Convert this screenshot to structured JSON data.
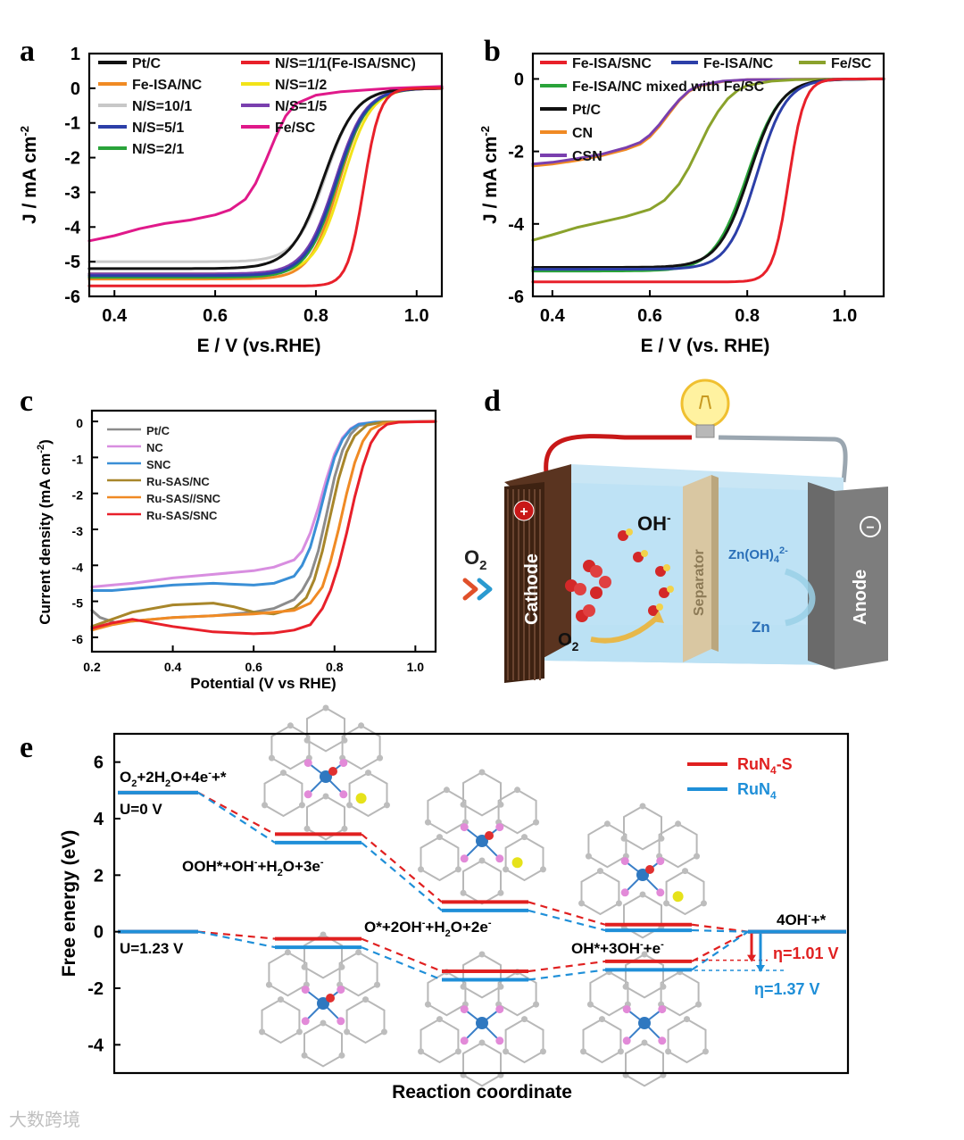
{
  "figure": {
    "watermark": "大数跨境",
    "panel_d": {
      "panel": "d",
      "cathode": "Cathode",
      "anode": "Anode",
      "separator": "Separator",
      "o2_in": "O",
      "o2_in_sub": "2",
      "o2_inside": "O",
      "o2_inside_sub": "2",
      "oh": "OH",
      "oh_sup": "-",
      "zincate": "Zn(OH)",
      "zincate_sub": "4",
      "zincate_sup": "2-",
      "zn": "Zn",
      "plus_symbol": "+",
      "minus_symbol": "−"
    }
  },
  "chart_data": [
    {
      "panel": "a",
      "type": "line",
      "xlabel": "E / V (vs.RHE)",
      "ylabel": "J / mA cm",
      "ylabel_sup": "-2",
      "xlim": [
        0.35,
        1.05
      ],
      "ylim": [
        -6,
        1
      ],
      "xticks": [
        0.4,
        0.6,
        0.8,
        1.0
      ],
      "xtick_labels": [
        "0.4",
        "0.6",
        "0.8",
        "1.0"
      ],
      "yticks": [
        1,
        0,
        -1,
        -2,
        -3,
        -4,
        -5,
        -6
      ],
      "ytick_labels": [
        "1",
        "0",
        "-1",
        "-2",
        "-3",
        "-4",
        "-5",
        "-6"
      ],
      "legend": [
        {
          "name": "Pt/C",
          "color": "#111111"
        },
        {
          "name": "N/S=1/1(Fe-ISA/SNC)",
          "color": "#e8202a"
        },
        {
          "name": "Fe-ISA/NC",
          "color": "#f08a24"
        },
        {
          "name": "N/S=1/2",
          "color": "#f2e318"
        },
        {
          "name": "N/S=10/1",
          "color": "#c8c8c8"
        },
        {
          "name": "N/S=1/5",
          "color": "#7a3fae"
        },
        {
          "name": "N/S=5/1",
          "color": "#2c3fa8"
        },
        {
          "name": "Fe/SC",
          "color": "#e0198a"
        },
        {
          "name": "N/S=2/1",
          "color": "#2aa33a"
        }
      ],
      "series": [
        {
          "name": "N/S=10/1",
          "color": "#c8c8c8",
          "jl": -5.0,
          "e_half": 0.82,
          "w": 0.03
        },
        {
          "name": "Fe-ISA/NC",
          "color": "#f08a24",
          "jl": -5.5,
          "e_half": 0.845,
          "w": 0.028
        },
        {
          "name": "N/S=1/2",
          "color": "#f2e318",
          "jl": -5.35,
          "e_half": 0.853,
          "w": 0.028
        },
        {
          "name": "N/S=2/1",
          "color": "#2aa33a",
          "jl": -5.45,
          "e_half": 0.842,
          "w": 0.03
        },
        {
          "name": "N/S=1/5",
          "color": "#7a3fae",
          "jl": -5.35,
          "e_half": 0.838,
          "w": 0.03
        },
        {
          "name": "N/S=5/1",
          "color": "#2c3fa8",
          "jl": -5.4,
          "e_half": 0.84,
          "w": 0.03
        },
        {
          "name": "Pt/C",
          "color": "#111111",
          "jl": -5.2,
          "e_half": 0.815,
          "w": 0.032
        },
        {
          "name": "Fe/SC",
          "color": "#e0198a",
          "x": [
            0.35,
            0.4,
            0.45,
            0.5,
            0.55,
            0.6,
            0.63,
            0.66,
            0.68,
            0.7,
            0.72,
            0.74,
            0.76,
            0.8,
            0.85,
            0.9,
            0.95,
            1.05
          ],
          "y": [
            -4.4,
            -4.25,
            -4.05,
            -3.9,
            -3.8,
            -3.65,
            -3.5,
            -3.2,
            -2.75,
            -2.1,
            -1.4,
            -0.8,
            -0.45,
            -0.2,
            -0.1,
            -0.05,
            0.0,
            0.05
          ]
        },
        {
          "name": "N/S=1/1(Fe-ISA/SNC)",
          "color": "#e8202a",
          "jl": -5.7,
          "e_half": 0.895,
          "w": 0.016
        }
      ]
    },
    {
      "panel": "b",
      "type": "line",
      "xlabel": "E / V (vs. RHE)",
      "ylabel": "J / mA cm",
      "ylabel_sup": "-2",
      "xlim": [
        0.36,
        1.08
      ],
      "ylim": [
        -6,
        0.7
      ],
      "xticks": [
        0.4,
        0.6,
        0.8,
        1.0
      ],
      "xtick_labels": [
        "0.4",
        "0.6",
        "0.8",
        "1.0"
      ],
      "yticks": [
        0,
        -2,
        -4,
        -6
      ],
      "ytick_labels": [
        "0",
        "-2",
        "-4",
        "-6"
      ],
      "legend": [
        {
          "name": "Fe-ISA/SNC",
          "color": "#e8202a"
        },
        {
          "name": "Fe-ISA/NC",
          "color": "#2c3fa8"
        },
        {
          "name": "Fe/SC",
          "color": "#8aa22c"
        },
        {
          "name": "Fe-ISA/NC mixed with Fe/SC",
          "color": "#2aa33a"
        },
        {
          "name": "Pt/C",
          "color": "#111111"
        },
        {
          "name": "CN",
          "color": "#f08a24"
        },
        {
          "name": "CSN",
          "color": "#7a3fae"
        }
      ],
      "series": [
        {
          "name": "CN",
          "color": "#f08a24",
          "x": [
            0.36,
            0.4,
            0.45,
            0.5,
            0.55,
            0.58,
            0.6,
            0.62,
            0.64,
            0.66,
            0.68,
            0.7,
            0.75,
            0.8,
            1.08
          ],
          "y": [
            -2.4,
            -2.35,
            -2.25,
            -2.12,
            -1.95,
            -1.8,
            -1.6,
            -1.3,
            -0.95,
            -0.6,
            -0.35,
            -0.2,
            -0.07,
            -0.02,
            0.0
          ]
        },
        {
          "name": "CSN",
          "color": "#7a3fae",
          "x": [
            0.36,
            0.4,
            0.45,
            0.5,
            0.55,
            0.58,
            0.6,
            0.62,
            0.64,
            0.66,
            0.68,
            0.7,
            0.75,
            0.8,
            1.08
          ],
          "y": [
            -2.35,
            -2.3,
            -2.2,
            -2.08,
            -1.9,
            -1.75,
            -1.55,
            -1.25,
            -0.9,
            -0.58,
            -0.33,
            -0.18,
            -0.06,
            -0.02,
            0.0
          ]
        },
        {
          "name": "Fe/SC",
          "color": "#8aa22c",
          "x": [
            0.36,
            0.4,
            0.45,
            0.5,
            0.55,
            0.6,
            0.63,
            0.66,
            0.68,
            0.7,
            0.72,
            0.74,
            0.76,
            0.78,
            0.8,
            0.85,
            0.9,
            1.08
          ],
          "y": [
            -4.45,
            -4.3,
            -4.1,
            -3.95,
            -3.8,
            -3.6,
            -3.35,
            -2.9,
            -2.45,
            -1.9,
            -1.35,
            -0.9,
            -0.55,
            -0.32,
            -0.18,
            -0.06,
            -0.02,
            0.0
          ]
        },
        {
          "name": "Fe-ISA/NC mixed with Fe/SC",
          "color": "#2aa33a",
          "jl": -5.3,
          "e_half": 0.8,
          "w": 0.034
        },
        {
          "name": "Pt/C",
          "color": "#111111",
          "jl": -5.2,
          "e_half": 0.805,
          "w": 0.032
        },
        {
          "name": "Fe-ISA/NC",
          "color": "#2c3fa8",
          "jl": -5.25,
          "e_half": 0.82,
          "w": 0.03
        },
        {
          "name": "Fe-ISA/SNC",
          "color": "#e8202a",
          "jl": -5.6,
          "e_half": 0.885,
          "w": 0.016
        }
      ]
    },
    {
      "panel": "c",
      "type": "line",
      "xlabel": "Potential (V vs RHE)",
      "ylabel": "Current density (mA cm",
      "ylabel_sup": "-2",
      "ylabel_end": ")",
      "xlim": [
        0.2,
        1.05
      ],
      "ylim": [
        -6.4,
        0.3
      ],
      "xticks": [
        0.2,
        0.4,
        0.6,
        0.8,
        1.0
      ],
      "xtick_labels": [
        "0.2",
        "0.4",
        "0.6",
        "0.8",
        "1.0"
      ],
      "yticks": [
        0,
        -1,
        -2,
        -3,
        -4,
        -5,
        -6
      ],
      "ytick_labels": [
        "0",
        "-1",
        "-2",
        "-3",
        "-4",
        "-5",
        "-6"
      ],
      "legend": [
        {
          "name": "Pt/C",
          "color": "#8c8c8c"
        },
        {
          "name": "NC",
          "color": "#d88ee0"
        },
        {
          "name": "SNC",
          "color": "#3a8fd6"
        },
        {
          "name": "Ru-SAS/NC",
          "color": "#a8862a"
        },
        {
          "name": "Ru-SAS//SNC",
          "color": "#f08a24"
        },
        {
          "name": "Ru-SAS/SNC",
          "color": "#e8202a"
        }
      ],
      "series": [
        {
          "name": "Pt/C",
          "color": "#8c8c8c",
          "x": [
            0.2,
            0.22,
            0.26,
            0.3,
            0.4,
            0.5,
            0.6,
            0.65,
            0.7,
            0.72,
            0.74,
            0.76,
            0.78,
            0.8,
            0.82,
            0.84,
            0.86,
            0.9,
            0.95,
            1.05
          ],
          "y": [
            -5.25,
            -5.45,
            -5.6,
            -5.55,
            -5.45,
            -5.4,
            -5.3,
            -5.2,
            -4.95,
            -4.7,
            -4.3,
            -3.6,
            -2.6,
            -1.55,
            -0.8,
            -0.35,
            -0.12,
            -0.03,
            -0.01,
            0.0
          ]
        },
        {
          "name": "NC",
          "color": "#d88ee0",
          "x": [
            0.2,
            0.25,
            0.3,
            0.4,
            0.5,
            0.6,
            0.65,
            0.7,
            0.72,
            0.74,
            0.76,
            0.78,
            0.8,
            0.82,
            0.84,
            0.86,
            0.9,
            1.05
          ],
          "y": [
            -4.6,
            -4.55,
            -4.5,
            -4.35,
            -4.25,
            -4.15,
            -4.05,
            -3.85,
            -3.6,
            -3.1,
            -2.4,
            -1.6,
            -0.9,
            -0.45,
            -0.2,
            -0.07,
            -0.02,
            0.0
          ]
        },
        {
          "name": "SNC",
          "color": "#3a8fd6",
          "x": [
            0.2,
            0.25,
            0.3,
            0.4,
            0.5,
            0.6,
            0.65,
            0.7,
            0.72,
            0.74,
            0.76,
            0.78,
            0.8,
            0.82,
            0.84,
            0.86,
            0.9,
            1.05
          ],
          "y": [
            -4.7,
            -4.7,
            -4.65,
            -4.55,
            -4.5,
            -4.55,
            -4.5,
            -4.3,
            -4.0,
            -3.5,
            -2.7,
            -1.8,
            -1.0,
            -0.5,
            -0.22,
            -0.08,
            -0.02,
            0.0
          ]
        },
        {
          "name": "Ru-SAS/NC",
          "color": "#a8862a",
          "x": [
            0.2,
            0.25,
            0.3,
            0.4,
            0.5,
            0.55,
            0.6,
            0.65,
            0.7,
            0.73,
            0.75,
            0.77,
            0.79,
            0.81,
            0.83,
            0.85,
            0.88,
            0.92,
            1.05
          ],
          "y": [
            -5.7,
            -5.5,
            -5.3,
            -5.1,
            -5.05,
            -5.15,
            -5.3,
            -5.35,
            -5.2,
            -4.9,
            -4.4,
            -3.6,
            -2.6,
            -1.6,
            -0.85,
            -0.4,
            -0.1,
            -0.02,
            0.0
          ]
        },
        {
          "name": "Ru-SAS//SNC",
          "color": "#f08a24",
          "x": [
            0.2,
            0.25,
            0.3,
            0.4,
            0.5,
            0.6,
            0.65,
            0.7,
            0.74,
            0.77,
            0.79,
            0.81,
            0.83,
            0.85,
            0.87,
            0.89,
            0.92,
            0.95,
            1.05
          ],
          "y": [
            -5.8,
            -5.65,
            -5.55,
            -5.45,
            -5.4,
            -5.35,
            -5.3,
            -5.25,
            -5.05,
            -4.6,
            -3.9,
            -3.0,
            -2.0,
            -1.15,
            -0.55,
            -0.22,
            -0.06,
            -0.02,
            0.0
          ]
        },
        {
          "name": "Ru-SAS/SNC",
          "color": "#e8202a",
          "x": [
            0.2,
            0.25,
            0.3,
            0.35,
            0.4,
            0.5,
            0.6,
            0.65,
            0.7,
            0.74,
            0.77,
            0.79,
            0.81,
            0.83,
            0.85,
            0.87,
            0.89,
            0.91,
            0.93,
            0.96,
            1.05
          ],
          "y": [
            -5.75,
            -5.6,
            -5.5,
            -5.6,
            -5.7,
            -5.85,
            -5.9,
            -5.88,
            -5.8,
            -5.65,
            -5.2,
            -4.7,
            -4.0,
            -3.1,
            -2.1,
            -1.25,
            -0.6,
            -0.25,
            -0.08,
            -0.02,
            0.0
          ]
        }
      ]
    },
    {
      "panel": "e",
      "type": "energy_diagram",
      "xlabel": "Reaction coordinate",
      "ylabel": "Free energy (eV)",
      "ylim": [
        -5,
        7
      ],
      "yticks": [
        6,
        4,
        2,
        0,
        -2,
        -4
      ],
      "ytick_labels": [
        "6",
        "4",
        "2",
        "0",
        "-2",
        "-4"
      ],
      "legend": [
        {
          "name": "RuN",
          "sub": "4",
          "suffix": "-S",
          "color": "#e02020"
        },
        {
          "name": "RuN",
          "sub": "4",
          "suffix": "",
          "color": "#1f8fd8"
        }
      ],
      "steps": [
        "O2+2H2O+4e-+*",
        "OOH*+OH-+H2O+3e-",
        "O*+2OH-+H2O+2e-",
        "OH*+3OH-+e-",
        "4OH-+*"
      ],
      "series": [
        {
          "name": "RuN4-S, U=0 V",
          "color": "#e02020",
          "values": [
            4.92,
            3.45,
            1.05,
            0.25,
            0.0
          ]
        },
        {
          "name": "RuN4, U=0 V",
          "color": "#1f8fd8",
          "values": [
            4.92,
            3.15,
            0.75,
            0.05,
            0.0
          ]
        },
        {
          "name": "RuN4-S, U=1.23 V",
          "color": "#e02020",
          "values": [
            0.0,
            -0.25,
            -1.4,
            -1.05,
            0.0
          ]
        },
        {
          "name": "RuN4, U=1.23 V",
          "color": "#1f8fd8",
          "values": [
            0.0,
            -0.55,
            -1.7,
            -1.35,
            0.0
          ]
        }
      ],
      "level_labels": {
        "s0": "O",
        "s0_sub": "2",
        "s0_mid": "+2H",
        "s0_sub2": "2",
        "s0_end": "O+4e",
        "s0_sup": "-",
        "s0_tail": "+*",
        "u0": "U=0 V",
        "s1": "OOH*+OH",
        "s1_sup": "-",
        "s1_mid": "+H",
        "s1_sub": "2",
        "s1_end": "O+3e",
        "s1_sup2": "-",
        "s2": "O*+2OH",
        "s2_sup": "-",
        "s2_mid": "+H",
        "s2_sub": "2",
        "s2_end": "O+2e",
        "s2_sup2": "-",
        "s3": "OH*+3OH",
        "s3_sup": "-",
        "s3_end": "+e",
        "s3_sup2": "-",
        "s4": "4OH",
        "s4_sup": "-",
        "s4_end": "+*",
        "u123": "U=1.23 V"
      },
      "overpotentials": [
        {
          "text": "η=1.01 V",
          "value": 1.01,
          "color": "#e02020"
        },
        {
          "text": "η=1.37 V",
          "value": 1.37,
          "color": "#1f8fd8"
        }
      ]
    }
  ]
}
